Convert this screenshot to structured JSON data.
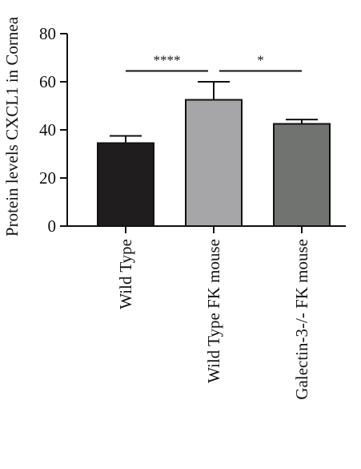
{
  "chart_data": {
    "type": "bar",
    "title": "",
    "xlabel": "",
    "ylabel": "Protein levels CXCL1 in Cornea",
    "ylim": [
      0,
      80
    ],
    "yticks": [
      0,
      20,
      40,
      60,
      80
    ],
    "categories": [
      "Wild Type",
      "Wild Type FK mouse",
      "Galectin-3-/- FK mouse"
    ],
    "values": [
      34.5,
      52.5,
      42.5
    ],
    "errors": [
      3.0,
      7.5,
      1.8
    ],
    "bar_colors": [
      "#1f1d1e",
      "#a6a5a7",
      "#717371"
    ],
    "grid": false,
    "legend": "none",
    "significance": [
      {
        "from": 0,
        "to": 1,
        "label": "****",
        "y": 64.5
      },
      {
        "from": 1,
        "to": 2,
        "label": "*",
        "y": 64.5
      }
    ]
  }
}
